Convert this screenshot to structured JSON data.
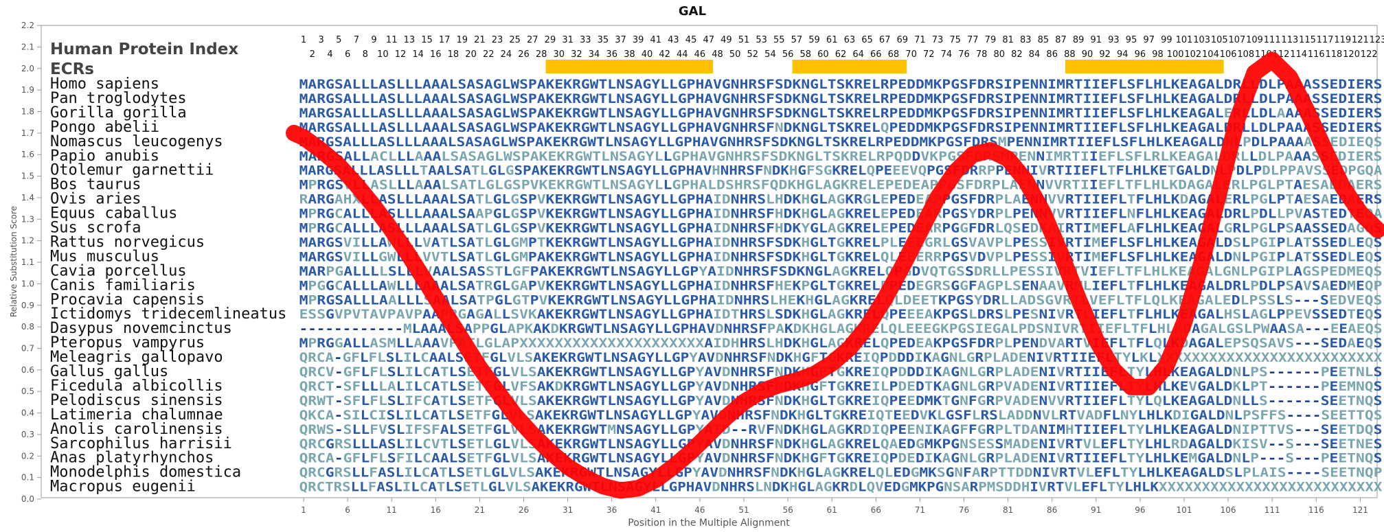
{
  "chart_data": {
    "type": "line",
    "title": "GAL",
    "xlabel": "Position in the Multiple Alignment",
    "ylabel": "Relative Substitution Score",
    "ylim": [
      0.0,
      2.2
    ],
    "xlim": [
      1,
      123
    ],
    "y_ticks": [
      "0.0",
      "0.1",
      "0.2",
      "0.3",
      "0.4",
      "0.5",
      "0.6",
      "0.7",
      "0.8",
      "0.9",
      "1.0",
      "1.1",
      "1.2",
      "1.3",
      "1.4",
      "1.5",
      "1.6",
      "1.7",
      "1.8",
      "1.9",
      "2.0",
      "2.1",
      "2.2"
    ],
    "x_ticks": [
      "1",
      "6",
      "11",
      "16",
      "21",
      "26",
      "31",
      "36",
      "41",
      "46",
      "51",
      "56",
      "61",
      "66",
      "71",
      "76",
      "81",
      "86",
      "91",
      "96",
      "101",
      "106",
      "111",
      "116",
      "121"
    ],
    "grid": false,
    "header_labels": {
      "index_label": "Human Protein Index",
      "ecr_label": "ECRs"
    },
    "human_index_top": [
      "1",
      "3",
      "5",
      "7",
      "9",
      "11",
      "13",
      "15",
      "17",
      "19",
      "21",
      "23",
      "25",
      "27",
      "29",
      "31",
      "33",
      "35",
      "37",
      "39",
      "41",
      "43",
      "45",
      "47",
      "49",
      "51",
      "53",
      "55",
      "57",
      "59",
      "61",
      "63",
      "65",
      "67",
      "69",
      "71",
      "73",
      "75",
      "77",
      "79",
      "81",
      "83",
      "85",
      "87",
      "89",
      "91",
      "93",
      "95",
      "97",
      "99",
      "101",
      "103",
      "105",
      "107",
      "109",
      "111",
      "113",
      "115",
      "117",
      "119",
      "121",
      "123"
    ],
    "human_index_bottom": [
      "2",
      "4",
      "6",
      "8",
      "10",
      "12",
      "14",
      "16",
      "18",
      "20",
      "22",
      "24",
      "26",
      "28",
      "30",
      "32",
      "34",
      "36",
      "38",
      "40",
      "42",
      "44",
      "46",
      "48",
      "50",
      "52",
      "54",
      "56",
      "58",
      "60",
      "62",
      "64",
      "66",
      "68",
      "70",
      "72",
      "74",
      "76",
      "78",
      "80",
      "82",
      "84",
      "86",
      "88",
      "90",
      "92",
      "94",
      "96",
      "98",
      "100",
      "102",
      "104",
      "106",
      "108",
      "110",
      "112",
      "114",
      "116",
      "118",
      "120",
      "122"
    ],
    "ecr_regions": [
      {
        "start": 29,
        "end": 47
      },
      {
        "start": 57,
        "end": 69
      },
      {
        "start": 88,
        "end": 105
      }
    ],
    "species": [
      "Homo sapiens",
      "Pan troglodytes",
      "Gorilla gorilla",
      "Pongo abelii",
      "Nomascus leucogenys",
      "Papio anubis",
      "Otolemur garnettii",
      "Bos taurus",
      "Ovis aries",
      "Equus caballus",
      "Sus scrofa",
      "Rattus norvegicus",
      "Mus musculus",
      "Cavia porcellus",
      "Canis familiaris",
      "Procavia capensis",
      "Ictidomys tridecemlineatus",
      "Dasypus novemcinctus",
      "Pteropus vampyrus",
      "Meleagris gallopavo",
      "Gallus gallus",
      "Ficedula albicollis",
      "Pelodiscus sinensis",
      "Latimeria chalumnae",
      "Anolis carolinensis",
      "Sarcophilus harrisii",
      "Anas platyrhynchos",
      "Monodelphis domestica",
      "Macropus eugenii"
    ],
    "sequences": [
      "MARGSALLLASLLLAAALSASAGLWSPAKEKRGWTLNSAGYLLGPHAVGNHRSFSDKNGLTSKRELRPEDDMKPGSFDRSIPENNIMRTIIEFLSFLHLKEAGALDRLLDLPAAASSEDIERS",
      "MARGSALLLASLLLAAALSASAGLWSPAKEKRGWTLNSAGYLLGPHAVGNHRSFSDKNGLTSKRELRPEDDMKPGSFDRSIPENNIMRTIIEFLSFLHLKEAGALDRLLDLPAAASSEDIERS",
      "MARGSALLLASLLLAAALSASAGLWSPAKEKRGWTLNSAGYLLGPHAVGNHRSFSDKNGLTSKRELRPEDDMKPGSFDRSIPENNIMRTIIEFLSFLHLKEAGALERLLDLAAAASSEDIERS",
      "MARGSALLLASLLLAAALSASAGLWSPAKEKRGWTLNSAGYLLGPHAVGNHRSFNDKNGLTSKRELQPEDDMKPGSFDRSIPENNIMRTIIEFLSFLHLKEAGALDRLLDLPAAASSEDIERS",
      "MARGSALLLASLLLAAALSASAGLWSPAKEKRGWTLNSAGYLLGPHAVGNHRSFSDKNGLTSKRELRPEDDMKPGSFDRSMPENNIMRTIIEFLSFLHLKEAGALDHLPDLPAAAASSEDIEQS",
      "MARGSALLACLLLAAALSASAGLWSPAKEKRGWTLNSAGYLLGPHAVGNHRSFSDKNGLTSKRELRPQDDVKPGSFDRSMPENNIMRTIIEFLSFLRLKEAGALDRLLDLPAAASSEDIERS",
      "MARGSALLLASLLLTAALSATLGLGSPAKEKRGWTLNSAGYLLGPHAVHNHRSFNDKHGFSGKRELQPEEEVQPGSFDRRPPENNIVRTIIEFLTFLHLKETGALDNLPDLPDLPPAVSSEDPGQA",
      "MPRGSVLLASLLLAAALSATLGLGSPVKEKRGWTLNSAGYLLGPHALDSHRSFQDKHGLAGKRELEPEDEAPPGSFDRPLAENNVVRTIIEFLTFLHLKDAGALERLPGLPTAESAEDAERS",
      "RARGAHXLLASLLLAAALSATLGLGSPVKEKRGWTLNSAGYLLGPHAIDNHRSLHDKHGLAGKRGLEPEDEAPPGSFDRPLAENNVVRTIIEFLTFLHLKDAGALERLPGLPTAESAEDAERS",
      "MPRGCALLLASLLLAAALSAAPGLGSPVKEKRGWTLNSAGYLLGPHAIDNHRSFHDKHGLAGKRELEPEDEARPGSYDRPLPENNVVRTIIEFLNFLHLKEAGALDRLPDLLPVASTEDTEQA",
      "MPRGCALLLASLLLAAALSATLGLGSPVKEKRGWTLNSAGYLLGPHAIDNHRSFHDKYGLAGKRELEPEDEARPGGFDRLQSEDKAIRTIMEFLAFLHLKEAGALGRLPGLPSAASSEDAGQS",
      "MARGSVILLAWLLLVATLSATLGLGMPTKEKRGWTLNSAGYLLGPHAIDNHRSFSDKHGLTGKRELPLEEEGRLGSVAVPLPESSIVRTIMEFLSFLHLKEAGALDSLPGIPLATSSEDLEQS",
      "MARGSVILLGWLLLVVTLSATLGLGMPAKEKRGWTLNSAGYLLGPHAIDNHRSFSDKHGLTGKRELQLEEERRPGSVDVPLPESSIVRTIMEFLSFLHLKEAGALDNLPGIPLATSSEDLEQS",
      "MARPGALLLLSLLLVAALSASSTLGFPAKEKRGWTLNSAGYLLGPYAIDNHRSFSDKNGLAGKRELQPGDVQTGSSDRLLPESSIVRTVIEFLTFLHLKEAGALGNLPGIPLAGSPEDMEQS",
      "MPGGCALLLAWLLLAAALSATRGLGAPVKEKRGWTLNSAGYLLGPHAIDNHRSFHEKPGLTGKRELPPEDEGRSGGFAGPLSENAAVRMLIEFLTFLHLKEAGALDRLPDLPSAVSAEDMEQP",
      "MPRGSALLLAALLLSAALSATPGLGTPVKEKRGWTLNSAGYLLGPHAIDNHRSLHEKHGLAGKRELQLDEETKPGSYDRLLADSGVRTLVEFLTFLQLKEAGALEDLPSSLS---SEDVEQS",
      "ESSGVPVTAVPAVPAAPRGAGALLSVKAKEKRGWTLNSAGYLLGPHAIDTHRSLSDKHGLAGKRELQPEEEAKPGSLDRSLPESNIVRTLIEFLTFLHLKEAGALHSLAGLPPEVSSEDTEQS",
      "------------MLAAALSAPPGLAPKAKDKRGWTLNSAGYLLGPHAVDNHRSFPAKDKHGLAGKRELQLEEEGKPGSIEGALPDSNIVRTIIEFLTFLHLKDAGALGSLPWAASA---EEAEQS",
      "MPRGGALLASMLLAAAVPATLGLAPXXXXXXXXXXXXXXXXXXXXXAIDHHRSLHDKHGLAGKRELQPEDEAKPGSFDRPLPENDVARTVIEFLTFLQLKDAGALEPSQSAVS---SEDAEQS",
      "QRCA-GFLFLSLILCAALSETFGLVLSAKEKRGWTLNSAGYLLGPYAVDNHRSFNDKHGFTGKREIQPDDDIKAGNLGRPLADENIVRTIIEFLTYLKLXXXXXXXXXXXXXXXXXXXXXXXXXX",
      "QRCV-GFLFLSLILCATLSETFGLVLSAKEKRGWTLNSAGYLLGPYAVDNHRSFNDKHGFTGKREIQPDDDIKAGNLGRPLADENIVRTIIEFLTYLHLKEAGALDNLPS------PEETNLS",
      "QRCT-SFLLLALILCATLSETFGLVFSAKDKRGWTLNSAGYLLGPYAVDNHRSFNDKHGFTGKREILPDEDTKAGNLGRPVADENIVRTIIEFLTYLHLKEVGALDKLPT------PEEMNQS",
      "QRWT-SFLFLSLIFCATLSETFGLVLSAKEKRGWTLNSAGYLLGPYAVDNHRSFNDKHGLTGKREIQPEEDMKTGNFGRPVADENVVRTIIEFLTYLQLKEAGALDNLLS------SEETNQS",
      "QKCA-SILCISLILCATLSETFGLVLSAKEKRGWTLNSAGYLLGPYAVDNHRSFNDKHGLTGKREIQTEEDVKLGSFLRSLADDNVLRTVADFLNYLHLKDIGALDNLPSFFS----SEETTQS",
      "QRWS-SLLFVSLIFSFALSETFGLVLSAKEKRGWTMNSAGYLLGPYAID--RVFNDKHGLAGKRDIQPEENIKAGFFGRPLTDANIMHTIIEFLTYLHLKEAGALDNIPTTVS---SEETDQS",
      "QRCGRSLLLASLILCVTLSETLGLVLSAKEKRGWTLNSAGYLLGPYAVDNHRSFNDKHGLAGKRELQAEDGMKPGNSESSMADENIVRTVLEFLTYLHLRDAGALDKISV--S---SEETNES",
      "QRCA-GFLFLSFILCAALSETFGLVLSAKEKRGWTLNSAGYLLGPYAVDNHRSFNDKHGFTGKREIQPDEDIKAGNLGRPLADENIVRTIIEFLTYLHLKEMGALDNLP---S---PEETNQS",
      "QRCGRSLLFASLILCATLSETLGLVLSAKEKRGWTLNSAGYLLGPYAVDNHRSFNDKHGLAGKRELQLEDGMKSGNFARPTTDDNIVRTVLEFLTYLHLKEAGALDSLPLAIS----SEETNQP",
      "QRCTRSLLFASLILCATLSETLGLVLSAKEKRGWTLNSAGYLLGPHAVDNHRSLNDKHGLAGKRDLQVEDGMKPGNSARPMSDDHIVRTVLEFLTYLHLKXXXXXXXXXXXXXXXXXXXXXXXXXX"
    ],
    "series": [
      {
        "x": [
          1,
          3,
          5,
          7,
          9,
          11,
          13,
          15,
          17,
          19,
          21,
          23,
          25,
          27,
          29,
          31,
          33,
          35,
          37,
          39,
          41,
          43,
          45,
          47,
          49,
          51,
          53,
          55,
          57,
          59,
          61,
          63,
          65,
          67,
          69,
          71,
          73,
          75,
          77,
          79,
          81,
          83,
          85,
          87,
          89,
          91,
          93,
          95,
          97,
          99,
          101,
          103,
          105,
          107,
          109,
          111,
          113,
          115,
          117,
          119,
          121,
          123
        ],
        "y": [
          1.68,
          1.62,
          1.55,
          1.46,
          1.36,
          1.25,
          1.13,
          1.0,
          0.87,
          0.74,
          0.61,
          0.5,
          0.39,
          0.3,
          0.22,
          0.15,
          0.1,
          0.06,
          0.04,
          0.05,
          0.09,
          0.15,
          0.22,
          0.3,
          0.38,
          0.45,
          0.5,
          0.53,
          0.55,
          0.58,
          0.63,
          0.7,
          0.8,
          0.93,
          1.08,
          1.24,
          1.4,
          1.52,
          1.6,
          1.62,
          1.58,
          1.48,
          1.33,
          1.14,
          0.93,
          0.74,
          0.6,
          0.52,
          0.52,
          0.62,
          0.82,
          1.1,
          1.43,
          1.76,
          1.98,
          2.04,
          1.96,
          1.8,
          1.62,
          1.45,
          1.33,
          1.25
        ]
      }
    ]
  },
  "colors": {
    "curve": "#ff0000",
    "ecr": "#ffc000",
    "residue_conserved": "#2a5aa8",
    "residue_variable": "#7aa6b0",
    "residue_dark": "#1c3f8a"
  }
}
